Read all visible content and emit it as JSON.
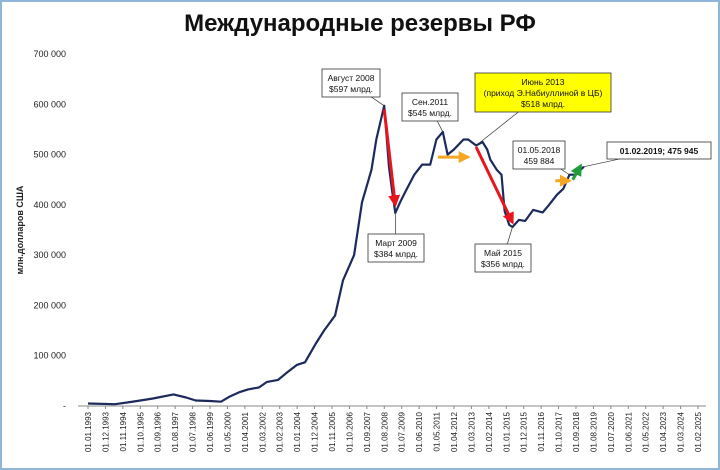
{
  "title": "Международные резервы РФ",
  "chart_data": {
    "type": "line",
    "title": "Международные резервы РФ",
    "ylabel": "млн.долларов США",
    "ylim": [
      0,
      700000
    ],
    "ytick_labels": [
      "-",
      "100 000",
      "200 000",
      "300 000",
      "400 000",
      "500 000",
      "600 000",
      "700 000"
    ],
    "xtick_labels": [
      "01.01.1993",
      "01.12.1993",
      "01.11.1994",
      "01.10.1995",
      "01.09.1996",
      "01.08.1997",
      "01.07.1998",
      "01.06.1999",
      "01.05.2000",
      "01.04.2001",
      "01.03.2002",
      "01.02.2003",
      "01.01.2004",
      "01.12.2004",
      "01.11.2005",
      "01.10.2006",
      "01.09.2007",
      "01.08.2008",
      "01.07.2009",
      "01.06.2010",
      "01.05.2011",
      "01.04.2012",
      "01.03.2013",
      "01.02.2014",
      "01.01.2015",
      "01.12.2015",
      "01.11.2016",
      "01.10.2017",
      "01.09.2018",
      "01.08.2019",
      "01.07.2020",
      "01.06.2021",
      "01.05.2022",
      "01.04.2023",
      "01.03.2024",
      "01.02.2025"
    ],
    "x_start": "1993-01-01",
    "x_end": "2025-02-01",
    "series_color": "#1c2a5c",
    "series": [
      {
        "x": [
          "1993-01-01",
          "1994-06-01",
          "1995-06-01",
          "1996-06-01",
          "1997-07-01",
          "1998-03-01",
          "1998-09-01",
          "1999-06-01",
          "2000-01-01",
          "2000-06-01",
          "2001-01-01",
          "2001-06-01",
          "2002-01-01",
          "2002-06-01",
          "2003-01-01",
          "2003-06-01",
          "2004-01-01",
          "2004-06-01",
          "2005-01-01",
          "2005-06-01",
          "2006-01-01",
          "2006-06-01",
          "2007-01-01",
          "2007-06-01",
          "2007-12-01",
          "2008-03-01",
          "2008-08-01",
          "2008-11-01",
          "2009-01-01",
          "2009-03-01",
          "2009-06-01",
          "2009-10-01",
          "2010-03-01",
          "2010-08-01",
          "2011-01-01",
          "2011-05-01",
          "2011-09-01",
          "2011-12-01",
          "2012-04-01",
          "2012-10-01",
          "2013-01-01",
          "2013-06-01",
          "2013-10-01",
          "2014-01-01",
          "2014-03-01",
          "2014-07-01",
          "2014-10-01",
          "2014-12-01",
          "2015-03-01",
          "2015-05-01",
          "2015-09-01",
          "2016-01-01",
          "2016-06-01",
          "2016-12-01",
          "2017-04-01",
          "2017-09-01",
          "2018-01-01",
          "2018-05-01",
          "2018-09-01",
          "2018-12-01",
          "2019-02-01"
        ],
        "y": [
          5000,
          3500,
          9000,
          15000,
          23000,
          17000,
          11000,
          10000,
          8500,
          18000,
          28000,
          33000,
          37000,
          48000,
          52000,
          65000,
          82000,
          87000,
          125000,
          150000,
          180000,
          250000,
          300000,
          405000,
          470000,
          530000,
          597000,
          475000,
          427000,
          384000,
          405000,
          430000,
          460000,
          480000,
          480000,
          530000,
          545000,
          500000,
          510000,
          530000,
          530000,
          518000,
          525000,
          510000,
          490000,
          470000,
          460000,
          388000,
          360000,
          356000,
          370000,
          368000,
          390000,
          385000,
          400000,
          420000,
          432000,
          459884,
          460000,
          470000,
          475945
        ]
      }
    ],
    "annotations": [
      {
        "lines": [
          "Август 2008",
          "$597 млрд."
        ]
      },
      {
        "lines": [
          "Март 2009",
          "$384 млрд."
        ]
      },
      {
        "lines": [
          "Сен.2011",
          "$545 млрд."
        ]
      },
      {
        "lines": [
          "Июнь 2013",
          "(приход Э.Набиуллиной в ЦБ)",
          "$518 млрд."
        ]
      },
      {
        "lines": [
          "01.05.2018",
          "459 884"
        ]
      },
      {
        "lines": [
          "Май 2015",
          "$356 млрд."
        ]
      },
      {
        "lines": [
          "01.02.2019; 475 945"
        ]
      }
    ],
    "arrows": [
      {
        "color": "#e8161c",
        "from": [
          "2008-08-01",
          590000
        ],
        "to": [
          "2009-03-01",
          400000
        ]
      },
      {
        "color": "#e8161c",
        "from": [
          "2013-06-01",
          515000
        ],
        "to": [
          "2015-05-01",
          365000
        ]
      },
      {
        "color": "#f5a623",
        "from": [
          "2011-06-01",
          495000
        ],
        "to": [
          "2013-01-01",
          495000
        ]
      },
      {
        "color": "#f5a623",
        "from": [
          "2017-08-01",
          448000
        ],
        "to": [
          "2018-05-01",
          448000
        ]
      },
      {
        "color": "#1f9d3c",
        "from": [
          "2018-07-01",
          450000
        ],
        "to": [
          "2018-12-01",
          478000
        ]
      }
    ]
  }
}
